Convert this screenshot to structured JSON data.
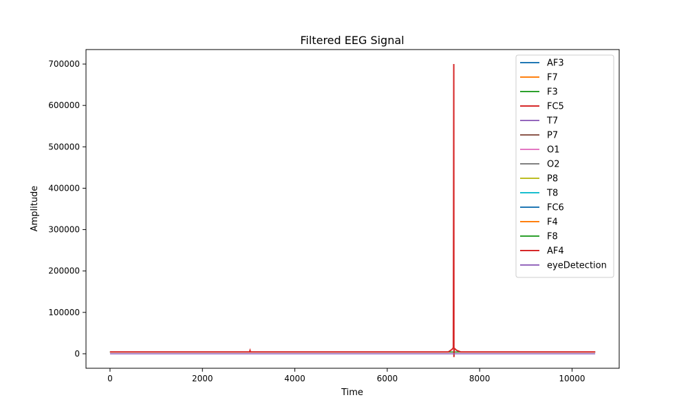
{
  "chart_data": {
    "type": "line",
    "title": "Filtered EEG Signal",
    "xlabel": "Time",
    "ylabel": "Amplitude",
    "xlim": [
      -520,
      11020
    ],
    "ylim": [
      -35000,
      735000
    ],
    "xticks": [
      "0",
      "2000",
      "4000",
      "6000",
      "8000",
      "10000"
    ],
    "xtick_values": [
      0,
      2000,
      4000,
      6000,
      8000,
      10000
    ],
    "yticks": [
      "0",
      "100000",
      "200000",
      "300000",
      "400000",
      "500000",
      "600000",
      "700000"
    ],
    "ytick_values": [
      0,
      100000,
      200000,
      300000,
      400000,
      500000,
      600000,
      700000
    ],
    "grid": false,
    "legend_position": "top-right",
    "series": [
      {
        "name": "AF3",
        "color": "#1f77b4",
        "baseline": 4300
      },
      {
        "name": "F7",
        "color": "#ff7f0e",
        "baseline": 4000
      },
      {
        "name": "F3",
        "color": "#2ca02c",
        "baseline": 4200
      },
      {
        "name": "FC5",
        "color": "#d62728",
        "baseline": 4100
      },
      {
        "name": "T7",
        "color": "#9467bd",
        "baseline": 4300
      },
      {
        "name": "P7",
        "color": "#8c564b",
        "baseline": 4600
      },
      {
        "name": "O1",
        "color": "#e377c2",
        "baseline": 4100
      },
      {
        "name": "O2",
        "color": "#7f7f7f",
        "baseline": 4600
      },
      {
        "name": "P8",
        "color": "#bcbd22",
        "baseline": 4200
      },
      {
        "name": "T8",
        "color": "#17becf",
        "baseline": 4200
      },
      {
        "name": "FC6",
        "color": "#1f77b4",
        "baseline": 4200
      },
      {
        "name": "F4",
        "color": "#ff7f0e",
        "baseline": 4300
      },
      {
        "name": "F8",
        "color": "#2ca02c",
        "baseline": 4600
      },
      {
        "name": "AF4",
        "color": "#d62728",
        "baseline": 4400
      },
      {
        "name": "eyeDetection",
        "color": "#9467bd",
        "baseline": 0
      }
    ],
    "x_range": [
      0,
      10500
    ],
    "spike": {
      "series": "AF4",
      "x": 7440,
      "peak": 700000,
      "trough": -8000
    },
    "minor_spike": {
      "x": 3030,
      "peak": 8000
    }
  }
}
